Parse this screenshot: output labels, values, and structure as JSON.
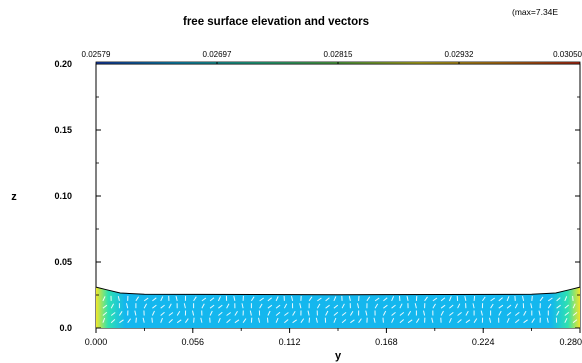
{
  "chart_data": {
    "type": "heatmap",
    "title": "free surface elevation and vectors",
    "corner_note": "(max=7.34E",
    "xlabel": "y",
    "ylabel": "z",
    "xlim": [
      0.0,
      0.28
    ],
    "ylim": [
      0.0,
      0.2
    ],
    "x_ticks": [
      "0.000",
      "0.056",
      "0.112",
      "0.168",
      "0.224",
      "0.280"
    ],
    "y_ticks": [
      "0.0",
      "0.05",
      "0.10",
      "0.15",
      "0.20"
    ],
    "colorbar": {
      "ticks": [
        "0.02579",
        "0.02697",
        "0.02815",
        "0.02932",
        "0.03050"
      ],
      "min": 0.02579,
      "max": 0.0305,
      "colors": [
        "#1e4fd8",
        "#14b7ee",
        "#2ee2b0",
        "#6fe05a",
        "#f0e62a",
        "#f39a1c",
        "#e8361a"
      ]
    },
    "free_surface": [
      {
        "y": 0.0,
        "z": 0.031
      },
      {
        "y": 0.006,
        "z": 0.029
      },
      {
        "y": 0.014,
        "z": 0.0265
      },
      {
        "y": 0.028,
        "z": 0.0255
      },
      {
        "y": 0.14,
        "z": 0.0252
      },
      {
        "y": 0.252,
        "z": 0.0255
      },
      {
        "y": 0.266,
        "z": 0.0265
      },
      {
        "y": 0.274,
        "z": 0.029
      },
      {
        "y": 0.28,
        "z": 0.031
      }
    ],
    "grid": false
  }
}
